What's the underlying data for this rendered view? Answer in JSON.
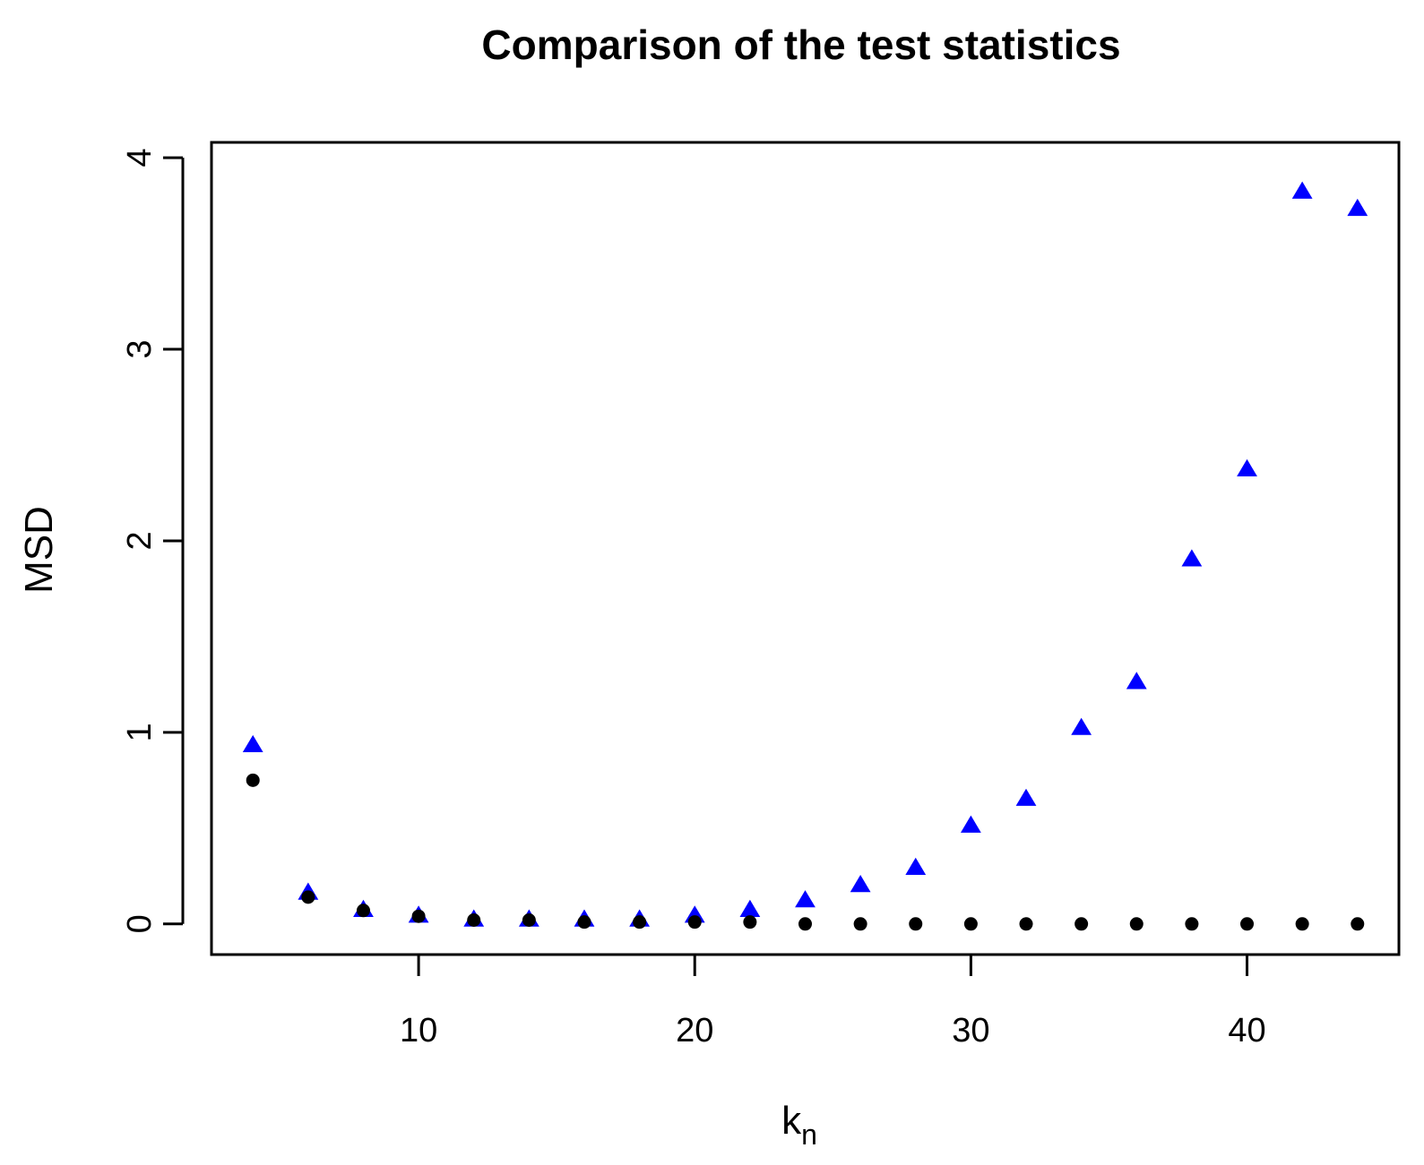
{
  "chart_data": {
    "type": "scatter",
    "title": "Comparison of the test statistics",
    "xlabel": "k",
    "xlabel_subscript": "n",
    "ylabel": "MSD",
    "xlim": [
      2.5,
      45.5
    ],
    "ylim": [
      -0.16,
      4.08
    ],
    "xticks": [
      10,
      20,
      30,
      40
    ],
    "yticks": [
      0,
      1,
      2,
      3,
      4
    ],
    "grid": false,
    "x": [
      4,
      6,
      8,
      10,
      12,
      14,
      16,
      18,
      20,
      22,
      24,
      26,
      28,
      30,
      32,
      34,
      36,
      38,
      40,
      42,
      44
    ],
    "series": [
      {
        "marker": "triangle",
        "color": "#0000ff",
        "values": [
          0.93,
          0.16,
          0.07,
          0.04,
          0.02,
          0.02,
          0.02,
          0.02,
          0.04,
          0.07,
          0.12,
          0.2,
          0.29,
          0.51,
          0.65,
          1.02,
          1.26,
          1.9,
          2.37,
          3.82,
          3.73
        ]
      },
      {
        "marker": "circle",
        "color": "#000000",
        "values": [
          0.75,
          0.14,
          0.07,
          0.04,
          0.02,
          0.02,
          0.01,
          0.01,
          0.01,
          0.01,
          0.0,
          0.0,
          0.0,
          0.0,
          0.0,
          0.0,
          0.0,
          0.0,
          0.0,
          0.0,
          0.0
        ]
      }
    ]
  }
}
